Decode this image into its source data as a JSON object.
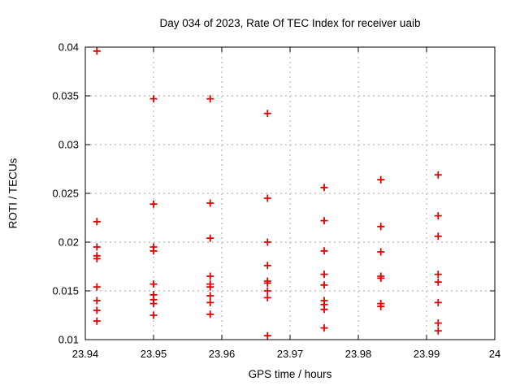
{
  "chart_data": {
    "type": "scatter",
    "title": "Day 034 of 2023, Rate Of TEC Index for receiver uaib",
    "xlabel": "GPS time / hours",
    "ylabel": "ROTI / TECUs",
    "xlim": [
      23.94,
      24
    ],
    "ylim": [
      0.01,
      0.04
    ],
    "xticks": [
      23.94,
      23.95,
      23.96,
      23.97,
      23.98,
      23.99,
      24
    ],
    "x_tick_labels": [
      "23.94",
      "23.95",
      "23.96",
      "23.97",
      "23.98",
      "23.99",
      "24"
    ],
    "yticks": [
      0.01,
      0.015,
      0.02,
      0.025,
      0.03,
      0.035,
      0.04
    ],
    "y_tick_labels": [
      "0.01",
      "0.015",
      "0.02",
      "0.025",
      "0.03",
      "0.035",
      "0.04"
    ],
    "grid": true,
    "legend": "none",
    "marker": {
      "shape": "plus",
      "size": 9,
      "color": "#e00000"
    },
    "colors": {
      "marker": "#e00000",
      "grid": "#aaaaaa",
      "border": "#000000",
      "background": "#ffffff",
      "text": "#000000"
    },
    "series": [
      {
        "name": "ROTI",
        "points": [
          [
            23.9417,
            0.0396
          ],
          [
            23.9417,
            0.0221
          ],
          [
            23.9417,
            0.0195
          ],
          [
            23.9417,
            0.0186
          ],
          [
            23.9417,
            0.0183
          ],
          [
            23.9417,
            0.0154
          ],
          [
            23.9417,
            0.014
          ],
          [
            23.9417,
            0.013
          ],
          [
            23.9417,
            0.0119
          ],
          [
            23.95,
            0.0347
          ],
          [
            23.95,
            0.0239
          ],
          [
            23.95,
            0.0195
          ],
          [
            23.95,
            0.0191
          ],
          [
            23.95,
            0.0157
          ],
          [
            23.95,
            0.0146
          ],
          [
            23.95,
            0.0141
          ],
          [
            23.95,
            0.0137
          ],
          [
            23.95,
            0.0125
          ],
          [
            23.9583,
            0.0347
          ],
          [
            23.9583,
            0.024
          ],
          [
            23.9583,
            0.0204
          ],
          [
            23.9583,
            0.0165
          ],
          [
            23.9583,
            0.0157
          ],
          [
            23.9583,
            0.0154
          ],
          [
            23.9583,
            0.0145
          ],
          [
            23.9583,
            0.0138
          ],
          [
            23.9583,
            0.0126
          ],
          [
            23.9667,
            0.0332
          ],
          [
            23.9667,
            0.0245
          ],
          [
            23.9667,
            0.02
          ],
          [
            23.9667,
            0.0176
          ],
          [
            23.9667,
            0.016
          ],
          [
            23.9667,
            0.0158
          ],
          [
            23.9667,
            0.015
          ],
          [
            23.9667,
            0.0143
          ],
          [
            23.9667,
            0.0104
          ],
          [
            23.975,
            0.0256
          ],
          [
            23.975,
            0.0222
          ],
          [
            23.975,
            0.0191
          ],
          [
            23.975,
            0.0167
          ],
          [
            23.975,
            0.0156
          ],
          [
            23.975,
            0.014
          ],
          [
            23.975,
            0.0136
          ],
          [
            23.975,
            0.0131
          ],
          [
            23.975,
            0.0112
          ],
          [
            23.9833,
            0.0264
          ],
          [
            23.9833,
            0.0216
          ],
          [
            23.9833,
            0.019
          ],
          [
            23.9833,
            0.0165
          ],
          [
            23.9833,
            0.0163
          ],
          [
            23.9833,
            0.0137
          ],
          [
            23.9833,
            0.0134
          ],
          [
            23.9917,
            0.0269
          ],
          [
            23.9917,
            0.0227
          ],
          [
            23.9917,
            0.0206
          ],
          [
            23.9917,
            0.0167
          ],
          [
            23.9917,
            0.0159
          ],
          [
            23.9917,
            0.0138
          ],
          [
            23.9917,
            0.0117
          ],
          [
            23.9917,
            0.0109
          ]
        ]
      }
    ]
  }
}
